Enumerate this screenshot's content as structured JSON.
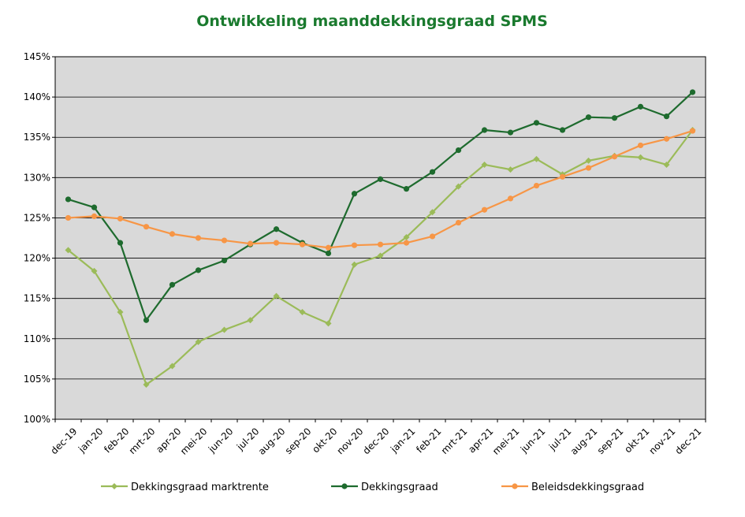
{
  "chart_data": {
    "type": "line",
    "title": "Ontwikkeling maanddekkingsgraad SPMS",
    "xlabel": "",
    "ylabel": "",
    "ylim": [
      100,
      145
    ],
    "ytick_labels": [
      "100%",
      "105%",
      "110%",
      "115%",
      "120%",
      "125%",
      "130%",
      "135%",
      "140%",
      "145%"
    ],
    "yticks": [
      100,
      105,
      110,
      115,
      120,
      125,
      130,
      135,
      140,
      145
    ],
    "grid": true,
    "legend_position": "bottom",
    "colors": {
      "title": "#1a7a2e",
      "plot_background": "#d9d9d9",
      "gridline": "#000000"
    },
    "categories": [
      "dec-19",
      "jan-20",
      "feb-20",
      "mrt-20",
      "apr-20",
      "mei-20",
      "jun-20",
      "jul-20",
      "aug-20",
      "sep-20",
      "okt-20",
      "nov-20",
      "dec-20",
      "jan-21",
      "feb-21",
      "mrt-21",
      "apr-21",
      "mei-21",
      "jun-21",
      "jul-21",
      "aug-21",
      "sep-21",
      "okt-21",
      "nov-21",
      "dec-21"
    ],
    "series": [
      {
        "name": "Dekkingsgraad marktrente",
        "color": "#9bbb59",
        "marker": "diamond",
        "values": [
          121.0,
          118.4,
          113.3,
          104.3,
          106.6,
          109.6,
          111.1,
          112.3,
          115.3,
          113.3,
          111.9,
          119.2,
          120.3,
          122.6,
          125.7,
          128.9,
          131.6,
          131.0,
          132.3,
          130.4,
          132.1,
          132.7,
          132.5,
          131.6,
          135.9
        ]
      },
      {
        "name": "Dekkingsgraad",
        "color": "#1e6b2e",
        "marker": "circle",
        "values": [
          127.3,
          126.3,
          121.9,
          112.3,
          116.7,
          118.5,
          119.7,
          121.7,
          123.6,
          121.9,
          120.6,
          128.0,
          129.8,
          128.6,
          130.7,
          133.4,
          135.9,
          135.6,
          136.8,
          135.9,
          137.5,
          137.4,
          138.8,
          137.6,
          140.6
        ]
      },
      {
        "name": "Beleidsdekkingsgraad",
        "color": "#f79646",
        "marker": "circle",
        "values": [
          125.0,
          125.2,
          124.9,
          123.9,
          123.0,
          122.5,
          122.2,
          121.8,
          121.9,
          121.7,
          121.3,
          121.6,
          121.7,
          121.9,
          122.7,
          124.4,
          126.0,
          127.4,
          129.0,
          130.1,
          131.2,
          132.6,
          134.0,
          134.8,
          135.8
        ]
      }
    ]
  }
}
